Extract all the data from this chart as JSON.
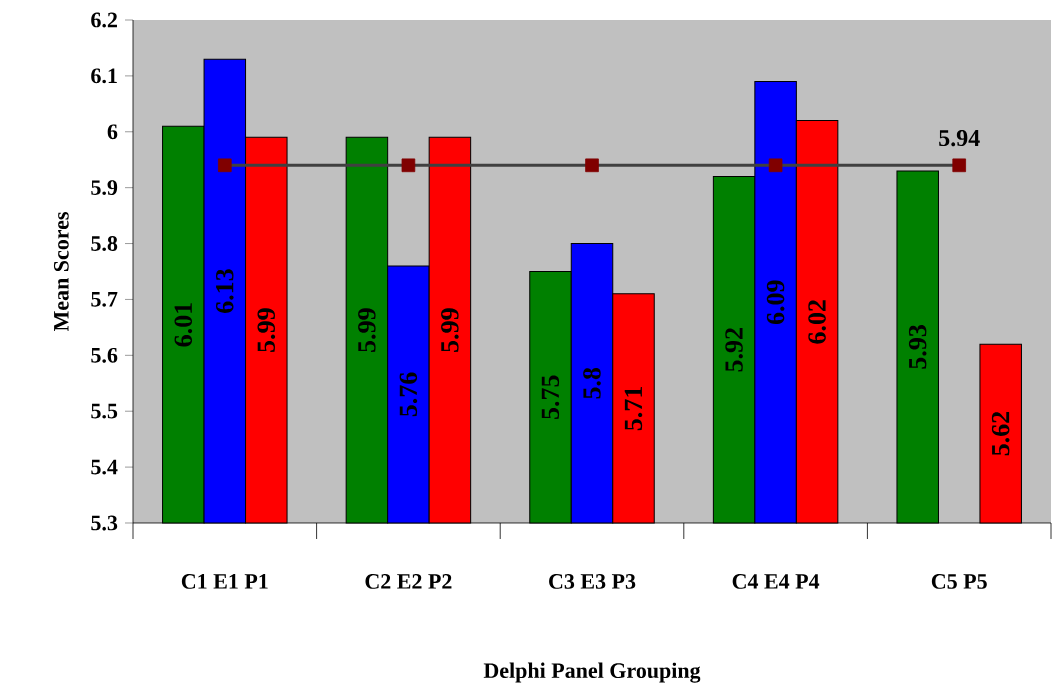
{
  "chart_data": {
    "type": "bar",
    "xlabel": "Delphi Panel Grouping",
    "ylabel": "Mean Scores",
    "categories": [
      "C1 E1 P1",
      "C2 E2 P2",
      "C3 E3 P3",
      "C4 E4 P4",
      "C5 P5"
    ],
    "series": [
      {
        "color": "#008000",
        "values": [
          6.01,
          5.99,
          5.75,
          5.92,
          5.93
        ],
        "value_labels": [
          "6.01",
          "5.99",
          "5.75",
          "5.92",
          "5.93"
        ]
      },
      {
        "color": "#0000ff",
        "values": [
          6.13,
          5.76,
          5.8,
          6.09,
          null
        ],
        "value_labels": [
          "6.13",
          "5.76",
          "5.8",
          "6.09",
          null
        ]
      },
      {
        "color": "#ff0000",
        "values": [
          5.99,
          5.99,
          5.71,
          6.02,
          5.62
        ],
        "value_labels": [
          "5.99",
          "5.99",
          "5.71",
          "6.02",
          "5.62"
        ]
      },
      {
        "type": "line",
        "color": "#404040",
        "colors": [
          "#800000",
          "#800000",
          "#800000",
          "#800000",
          "#800000"
        ],
        "marker": "square",
        "values": [
          5.94,
          5.94,
          5.94,
          5.94,
          5.94
        ],
        "value_labels": [
          null,
          null,
          null,
          null,
          "5.94"
        ]
      }
    ],
    "ylim": [
      5.3,
      6.2
    ],
    "yticks": [
      5.3,
      5.4,
      5.5,
      5.6,
      5.7,
      5.8,
      5.9,
      6,
      6.1,
      6.2
    ]
  }
}
